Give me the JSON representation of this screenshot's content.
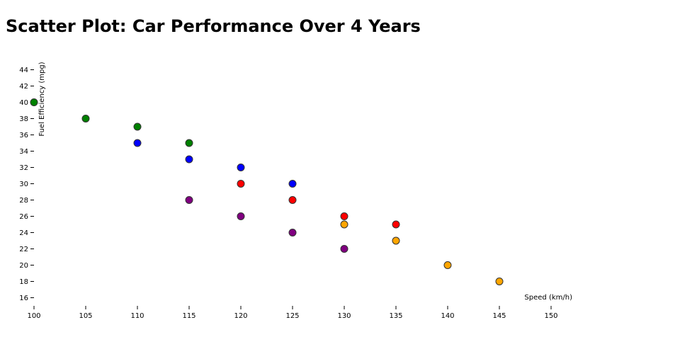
{
  "page": {
    "title": "Scatter Plot: Car Performance Over 4 Years"
  },
  "chart_data": {
    "type": "scatter",
    "title": "Scatter Plot: Car Performance Over 4 Years",
    "xlabel": "Speed (km/h)",
    "ylabel": "Fuel Efficiency (mpg)",
    "xlim": [
      100,
      150
    ],
    "ylim": [
      15,
      45
    ],
    "xticks": [
      100,
      105,
      110,
      115,
      120,
      125,
      130,
      135,
      140,
      145,
      150
    ],
    "yticks": [
      16,
      18,
      20,
      22,
      24,
      26,
      28,
      30,
      32,
      34,
      36,
      38,
      40,
      42,
      44
    ],
    "grid": false,
    "series": [
      {
        "color": "#008000",
        "points": [
          [
            100,
            40
          ],
          [
            105,
            38
          ],
          [
            110,
            37
          ],
          [
            115,
            35
          ]
        ]
      },
      {
        "color": "#0000ff",
        "points": [
          [
            110,
            35
          ],
          [
            115,
            33
          ],
          [
            120,
            32
          ],
          [
            125,
            30
          ]
        ]
      },
      {
        "color": "#ff0000",
        "points": [
          [
            120,
            30
          ],
          [
            125,
            28
          ],
          [
            130,
            26
          ],
          [
            135,
            25
          ]
        ]
      },
      {
        "color": "#ffa500",
        "points": [
          [
            130,
            25
          ],
          [
            135,
            23
          ],
          [
            140,
            20
          ],
          [
            145,
            18
          ]
        ]
      },
      {
        "color": "#800080",
        "points": [
          [
            115,
            28
          ],
          [
            120,
            26
          ],
          [
            125,
            24
          ],
          [
            130,
            22
          ]
        ]
      }
    ]
  }
}
